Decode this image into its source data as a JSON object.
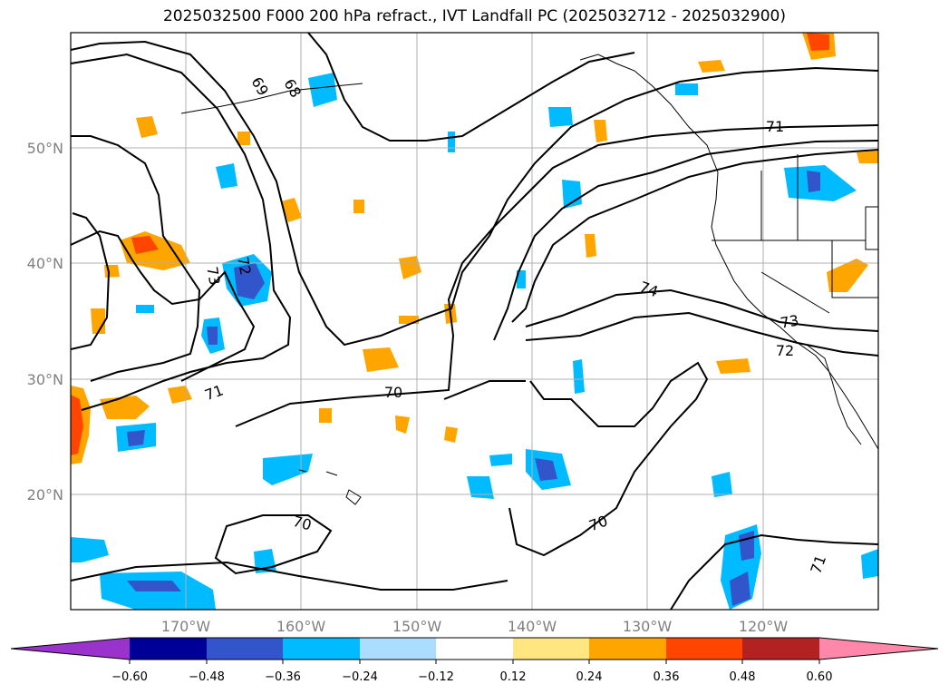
{
  "title": "2025032500 F000 200 hPa refract., IVT Landfall PC (2025032712 - 2025032900)",
  "map": {
    "lat_labels": [
      "50°N",
      "40°N",
      "30°N",
      "20°N"
    ],
    "lon_labels": [
      "170°W",
      "160°W",
      "150°W",
      "140°W",
      "130°W",
      "120°W"
    ],
    "contour_labels": [
      "70",
      "70",
      "70",
      "71",
      "71",
      "71",
      "72",
      "72",
      "73",
      "73",
      "74",
      "69",
      "68"
    ]
  },
  "colorbar": {
    "ticks": [
      "−0.60",
      "−0.48",
      "−0.36",
      "−0.24",
      "−0.12",
      "0.12",
      "0.24",
      "0.36",
      "0.48",
      "0.60"
    ],
    "colors": [
      "#9933cc",
      "#000099",
      "#3355cc",
      "#00bbff",
      "#aaddff",
      "#ffffff",
      "#ffe680",
      "#ffa500",
      "#ff4500",
      "#b22222",
      "#ff88aa"
    ]
  }
}
